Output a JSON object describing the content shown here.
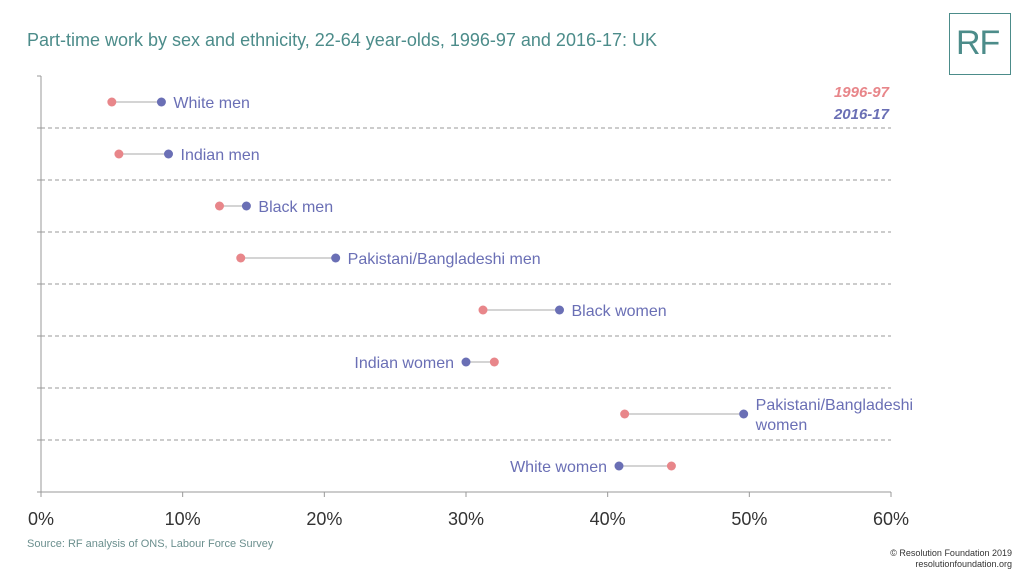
{
  "title": "Part-time work by sex and ethnicity, 22-64 year-olds, 1996-97 and 2016-17: UK",
  "logo_text": "RF",
  "source": "Source: RF analysis of ONS, Labour Force Survey",
  "copyright_line1": "© Resolution Foundation 2019",
  "copyright_line2": "resolutionfoundation.org",
  "colors": {
    "accent": "#4c8c8a",
    "series_1996": "#e8868a",
    "series_2016": "#6a6fb5"
  },
  "chart_data": {
    "type": "scatter",
    "x_tick_labels": [
      "0%",
      "10%",
      "20%",
      "30%",
      "40%",
      "50%",
      "60%"
    ],
    "xlim": [
      0,
      60
    ],
    "legend": {
      "position": "top-right",
      "entries": [
        "1996-97",
        "2016-17"
      ]
    },
    "categories": [
      "White men",
      "Indian men",
      "Black men",
      "Pakistani/Bangladeshi men",
      "Black women",
      "Indian women",
      "Pakistani/Bangladeshi women",
      "White women"
    ],
    "series": [
      {
        "name": "1996-97",
        "values": [
          5.0,
          5.5,
          12.6,
          14.1,
          31.2,
          32.0,
          41.2,
          44.5
        ]
      },
      {
        "name": "2016-17",
        "values": [
          8.5,
          9.0,
          14.5,
          20.8,
          36.6,
          30.0,
          49.6,
          40.8
        ]
      }
    ]
  }
}
